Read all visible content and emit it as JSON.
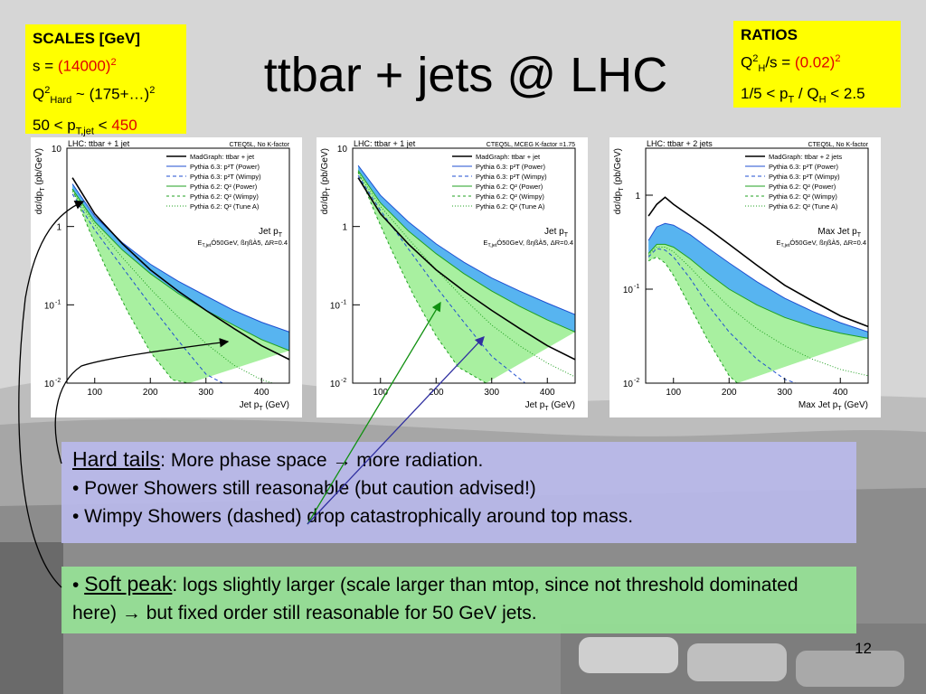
{
  "slide": {
    "title": "ttbar + jets @ LHC",
    "page_number": "12"
  },
  "scales_box": {
    "heading": "SCALES [GeV]",
    "line1": {
      "a": "s = ",
      "b": "(14000)",
      "sup": "2"
    },
    "line2": {
      "a": "Q",
      "sup": "2",
      "sub": "Hard",
      "b": " ~ (175+…)",
      "sup2": "2"
    },
    "line3": {
      "a": "50 < p",
      "sub": "T,jet",
      "b": " < ",
      "c": "450"
    }
  },
  "ratios_box": {
    "heading": "RATIOS",
    "line1": {
      "a": "Q",
      "sup": "2",
      "sub": "H",
      "b": "/s = ",
      "c": "(0.02)",
      "sup2": "2"
    },
    "line2": {
      "a": "1/5 < p",
      "sub": "T",
      "b": " / Q",
      "sub2": "H",
      "c": " < 2.5"
    }
  },
  "notes": {
    "hard": {
      "label": "Hard tails",
      "colon": ":",
      "text1": " More phase space ",
      "arrow": "→",
      "text2": " more radiation.",
      "bullet1": "• Power Showers still reasonable (but caution advised!)",
      "bullet2": "• Wimpy Showers (dashed) drop catastrophically around top mass."
    },
    "soft": {
      "bullet": "• ",
      "label": "Soft peak",
      "colon": ":",
      "text1": " logs slightly larger (scale larger than mtop, since not threshold dominated here) ",
      "arrow": "→",
      "text2": " but fixed order still reasonable for 50 GeV jets."
    }
  },
  "colors": {
    "madgraph": "#000000",
    "pythia_power": "#1f4fd0",
    "power_band": "#57b4f0",
    "pythia62": "#20a020",
    "green_band": "#a8f0a0"
  },
  "chart_data": [
    {
      "type": "line",
      "title": "LHC: ttbar + 1 jet",
      "corner": "CTEQ5L, No K-factor",
      "observable": "Jet p",
      "observable_sub": "T",
      "cuts": "E",
      "cuts_sub": "T,jet",
      "cuts_rest": "Ó50GeV, ßηßÀ5, ΔR=0.4",
      "xlabel": "Jet p",
      "xlabel_sub": "T",
      "xlabel_unit": " (GeV)",
      "ylabel": "dσ/dp",
      "ylabel_sub": "T",
      "ylabel_unit": " (pb/GeV)",
      "xticks": [
        "100",
        "200",
        "300",
        "400"
      ],
      "yticks": [
        {
          "base": "10",
          "exp": ""
        },
        {
          "base": "1",
          "exp": ""
        },
        {
          "base": "10",
          "exp": "-1"
        },
        {
          "base": "10",
          "exp": "-2"
        }
      ],
      "xlim": [
        50,
        450
      ],
      "ylim_log": [
        -2,
        1
      ],
      "legend": [
        "MadGraph: ttbar + jet",
        "Pythia 6.3: p²T (Power)",
        "Pythia 6.3: p²T (Wimpy)",
        "Pythia 6.2: Q² (Power)",
        "Pythia 6.2: Q² (Wimpy)",
        "Pythia 6.2: Q² (Tune A)"
      ],
      "series": {
        "madgraph": {
          "x": [
            60,
            100,
            150,
            200,
            250,
            300,
            350,
            400,
            450
          ],
          "y": [
            4.2,
            1.45,
            0.6,
            0.28,
            0.15,
            0.085,
            0.05,
            0.03,
            0.02
          ]
        },
        "power_hi": {
          "x": [
            60,
            100,
            150,
            200,
            250,
            300,
            350,
            400,
            450
          ],
          "y": [
            3.5,
            1.35,
            0.62,
            0.33,
            0.2,
            0.13,
            0.085,
            0.06,
            0.045
          ]
        },
        "power_lo": {
          "x": [
            60,
            100,
            150,
            200,
            250,
            300,
            350,
            400,
            450
          ],
          "y": [
            3.0,
            1.15,
            0.5,
            0.25,
            0.14,
            0.085,
            0.055,
            0.036,
            0.026
          ]
        },
        "green_hi": {
          "x": [
            60,
            100,
            150,
            200,
            250,
            300,
            350,
            400,
            450
          ],
          "y": [
            3.0,
            1.15,
            0.5,
            0.25,
            0.14,
            0.085,
            0.055,
            0.036,
            0.026
          ]
        },
        "green_lo": {
          "x": [
            60,
            90,
            120,
            160,
            200,
            240,
            270
          ],
          "y": [
            3.0,
            0.9,
            0.3,
            0.08,
            0.025,
            0.011,
            0.01
          ]
        },
        "wimpy": {
          "x": [
            60,
            100,
            150,
            200,
            250,
            300,
            330
          ],
          "y": [
            2.6,
            0.9,
            0.3,
            0.1,
            0.035,
            0.013,
            0.01
          ]
        },
        "tuneA": {
          "x": [
            60,
            100,
            150,
            200,
            250,
            300,
            350,
            400,
            420
          ],
          "y": [
            2.8,
            1.05,
            0.4,
            0.16,
            0.07,
            0.032,
            0.017,
            0.011,
            0.01
          ]
        }
      }
    },
    {
      "type": "line",
      "title": "LHC: ttbar + 1 jet",
      "corner": "CTEQ5L, MCEG K-factor =1.75",
      "observable": "Jet p",
      "observable_sub": "T",
      "cuts": "E",
      "cuts_sub": "T,jet",
      "cuts_rest": "Ó50GeV, ßηßÀ5, ΔR=0.4",
      "xlabel": "Jet p",
      "xlabel_sub": "T",
      "xlabel_unit": " (GeV)",
      "ylabel": "dσ/dp",
      "ylabel_sub": "T",
      "ylabel_unit": " (pb/GeV)",
      "xticks": [
        "100",
        "200",
        "300",
        "400"
      ],
      "yticks": [
        {
          "base": "10",
          "exp": ""
        },
        {
          "base": "1",
          "exp": ""
        },
        {
          "base": "10",
          "exp": "-1"
        },
        {
          "base": "10",
          "exp": "-2"
        }
      ],
      "xlim": [
        50,
        450
      ],
      "ylim_log": [
        -2,
        1
      ],
      "legend": [
        "MadGraph: ttbar + jet",
        "Pythia 6.3: p²T (Power)",
        "Pythia 6.3: p²T (Wimpy)",
        "Pythia 6.2: Q² (Power)",
        "Pythia 6.2: Q² (Wimpy)",
        "Pythia 6.2: Q² (Tune A)"
      ],
      "series": {
        "madgraph": {
          "x": [
            60,
            100,
            150,
            200,
            250,
            300,
            350,
            400,
            450
          ],
          "y": [
            4.2,
            1.45,
            0.6,
            0.28,
            0.15,
            0.085,
            0.05,
            0.03,
            0.02
          ]
        },
        "power_hi": {
          "x": [
            60,
            100,
            150,
            200,
            250,
            300,
            350,
            400,
            450
          ],
          "y": [
            6.0,
            2.5,
            1.15,
            0.6,
            0.35,
            0.22,
            0.15,
            0.105,
            0.075
          ]
        },
        "power_lo": {
          "x": [
            60,
            100,
            150,
            200,
            250,
            300,
            350,
            400,
            450
          ],
          "y": [
            5.2,
            2.0,
            0.88,
            0.45,
            0.25,
            0.15,
            0.096,
            0.064,
            0.045
          ]
        },
        "green_hi": {
          "x": [
            60,
            100,
            150,
            200,
            250,
            300,
            350,
            400,
            450
          ],
          "y": [
            5.2,
            2.0,
            0.88,
            0.45,
            0.25,
            0.15,
            0.096,
            0.064,
            0.045
          ]
        },
        "green_lo": {
          "x": [
            60,
            90,
            120,
            160,
            200,
            240,
            290
          ],
          "y": [
            5.0,
            1.5,
            0.5,
            0.13,
            0.04,
            0.016,
            0.01
          ]
        },
        "wimpy": {
          "x": [
            60,
            100,
            150,
            200,
            250,
            300,
            360
          ],
          "y": [
            4.5,
            1.6,
            0.52,
            0.17,
            0.06,
            0.022,
            0.01
          ]
        },
        "tuneA": {
          "x": [
            60,
            100,
            150,
            200,
            250,
            300,
            350,
            400,
            450
          ],
          "y": [
            4.8,
            1.8,
            0.7,
            0.28,
            0.12,
            0.055,
            0.03,
            0.018,
            0.012
          ]
        }
      }
    },
    {
      "type": "line",
      "title": "LHC: ttbar + 2 jets",
      "corner": "CTEQ5L, No K-factor",
      "observable": "Max Jet p",
      "observable_sub": "T",
      "cuts": "E",
      "cuts_sub": "T,jet",
      "cuts_rest": "Ó50GeV, ßηßÀ5, ΔR=0.4",
      "xlabel": "Max Jet p",
      "xlabel_sub": "T",
      "xlabel_unit": " (GeV)",
      "ylabel": "dσ/dp",
      "ylabel_sub": "T",
      "ylabel_unit": " (pb/GeV)",
      "xticks": [
        "100",
        "200",
        "300",
        "400"
      ],
      "yticks": [
        {
          "base": "1",
          "exp": ""
        },
        {
          "base": "10",
          "exp": "-1"
        },
        {
          "base": "10",
          "exp": "-2"
        }
      ],
      "xlim": [
        50,
        450
      ],
      "ylim_log": [
        -2,
        0.5
      ],
      "legend": [
        "MadGraph: ttbar + 2 jets",
        "Pythia 6.3: p²T (Power)",
        "Pythia 6.3: p²T (Wimpy)",
        "Pythia 6.2: Q² (Power)",
        "Pythia 6.2: Q² (Wimpy)",
        "Pythia 6.2: Q² (Tune A)"
      ],
      "series": {
        "madgraph": {
          "x": [
            55,
            70,
            85,
            100,
            130,
            160,
            200,
            250,
            300,
            350,
            400,
            450
          ],
          "y": [
            0.6,
            0.8,
            0.95,
            0.8,
            0.6,
            0.45,
            0.3,
            0.18,
            0.11,
            0.075,
            0.052,
            0.04
          ]
        },
        "power_hi": {
          "x": [
            55,
            70,
            85,
            100,
            130,
            160,
            200,
            250,
            300,
            350,
            400,
            450
          ],
          "y": [
            0.33,
            0.46,
            0.5,
            0.48,
            0.38,
            0.28,
            0.19,
            0.12,
            0.08,
            0.058,
            0.044,
            0.035
          ]
        },
        "power_lo": {
          "x": [
            55,
            70,
            85,
            100,
            130,
            160,
            200,
            250,
            300,
            350,
            400,
            450
          ],
          "y": [
            0.24,
            0.3,
            0.3,
            0.28,
            0.21,
            0.15,
            0.1,
            0.068,
            0.05,
            0.04,
            0.034,
            0.03
          ]
        },
        "green_hi": {
          "x": [
            55,
            70,
            85,
            100,
            130,
            160,
            200,
            250,
            300,
            350,
            400,
            450
          ],
          "y": [
            0.24,
            0.3,
            0.3,
            0.28,
            0.21,
            0.15,
            0.1,
            0.068,
            0.05,
            0.04,
            0.034,
            0.03
          ]
        },
        "green_lo": {
          "x": [
            55,
            70,
            85,
            100,
            130,
            160,
            200,
            215
          ],
          "y": [
            0.2,
            0.22,
            0.19,
            0.14,
            0.065,
            0.03,
            0.012,
            0.01
          ]
        },
        "wimpy": {
          "x": [
            55,
            70,
            85,
            100,
            130,
            160,
            200,
            250,
            300,
            320
          ],
          "y": [
            0.22,
            0.27,
            0.26,
            0.22,
            0.13,
            0.07,
            0.035,
            0.018,
            0.011,
            0.01
          ]
        },
        "tuneA": {
          "x": [
            55,
            70,
            85,
            100,
            130,
            160,
            200,
            250,
            300,
            350,
            400,
            450
          ],
          "y": [
            0.23,
            0.28,
            0.28,
            0.25,
            0.17,
            0.11,
            0.065,
            0.038,
            0.025,
            0.018,
            0.014,
            0.012
          ]
        }
      }
    }
  ]
}
